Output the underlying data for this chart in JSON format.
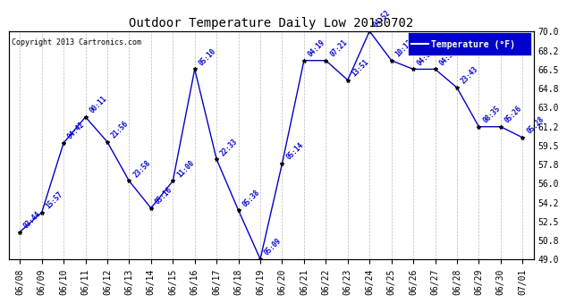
{
  "title": "Outdoor Temperature Daily Low 20130702",
  "copyright": "Copyright 2013 Cartronics.com",
  "legend_label": "Temperature (°F)",
  "dates": [
    "06/08",
    "06/09",
    "06/10",
    "06/11",
    "06/12",
    "06/13",
    "06/14",
    "06/15",
    "06/16",
    "06/17",
    "06/18",
    "06/19",
    "06/20",
    "06/21",
    "06/22",
    "06/23",
    "06/24",
    "06/25",
    "06/26",
    "06/27",
    "06/28",
    "06/29",
    "06/30",
    "07/01"
  ],
  "temps": [
    51.5,
    53.3,
    59.7,
    62.1,
    59.8,
    56.2,
    53.7,
    56.2,
    66.5,
    58.2,
    53.5,
    49.0,
    57.8,
    67.3,
    67.3,
    65.5,
    70.0,
    67.3,
    66.5,
    66.5,
    64.8,
    61.2,
    61.2,
    60.2
  ],
  "annotations": [
    "03:44",
    "15:57",
    "04:42",
    "00:11",
    "21:56",
    "23:58",
    "05:16",
    "11:00",
    "05:10",
    "22:33",
    "05:38",
    "05:09",
    "05:14",
    "04:19",
    "07:21",
    "13:51",
    "04:52",
    "10:13",
    "04:06",
    "04:56",
    "23:43",
    "08:35",
    "05:26",
    "05:28"
  ],
  "ylim": [
    49.0,
    70.0
  ],
  "yticks": [
    49.0,
    50.8,
    52.5,
    54.2,
    56.0,
    57.8,
    59.5,
    61.2,
    63.0,
    64.8,
    66.5,
    68.2,
    70.0
  ],
  "line_color": "#0000cc",
  "marker_color": "#000000",
  "bg_color": "#ffffff",
  "plot_bg_color": "#ffffff",
  "grid_color": "#bbbbbb",
  "title_color": "#000000",
  "anno_color": "#0000cc",
  "legend_bg": "#0000cc",
  "legend_fg": "#ffffff"
}
